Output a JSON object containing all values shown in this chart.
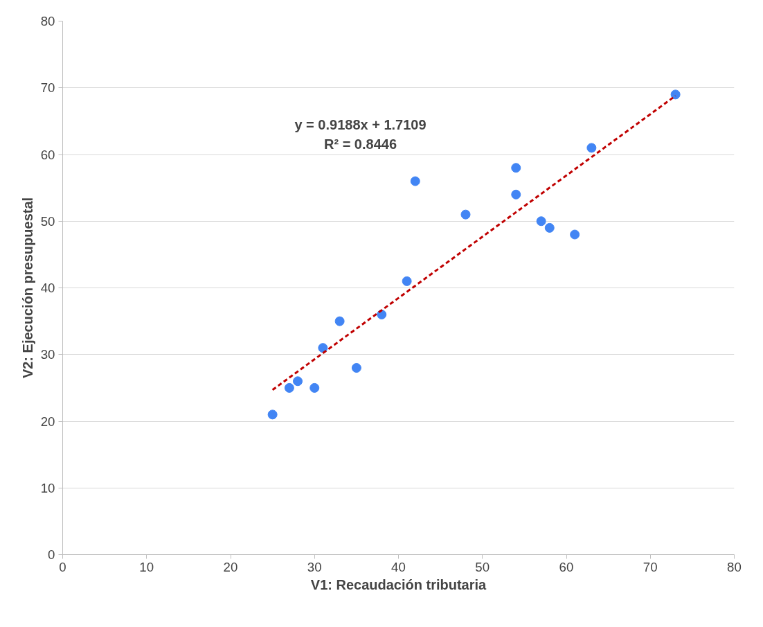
{
  "chart_data": {
    "type": "scatter",
    "xlabel": "V1: Recaudación tributaria",
    "ylabel": "V2: Ejecución presupuestal",
    "xlim": [
      0,
      80
    ],
    "ylim": [
      0,
      80
    ],
    "xticks": [
      0,
      10,
      20,
      30,
      40,
      50,
      60,
      70,
      80
    ],
    "yticks": [
      0,
      10,
      20,
      30,
      40,
      50,
      60,
      70,
      80
    ],
    "grid": "y",
    "series": [
      {
        "color": "#4285f4",
        "marker": "circle",
        "x": [
          25,
          27,
          28,
          30,
          31,
          33,
          35,
          38,
          41,
          42,
          48,
          54,
          54,
          57,
          58,
          61,
          63,
          73
        ],
        "values": [
          21,
          25,
          26,
          25,
          31,
          35,
          28,
          36,
          41,
          56,
          51,
          58,
          54,
          50,
          49,
          48,
          61,
          69
        ]
      },
      {
        "type": "line",
        "color": "#c00000",
        "line_style": "dashed",
        "x": [
          25,
          73
        ],
        "values": [
          24.7,
          68.8
        ]
      }
    ],
    "annotations": [
      "y = 0.9188x + 1.7109",
      "R² = 0.8446"
    ]
  }
}
